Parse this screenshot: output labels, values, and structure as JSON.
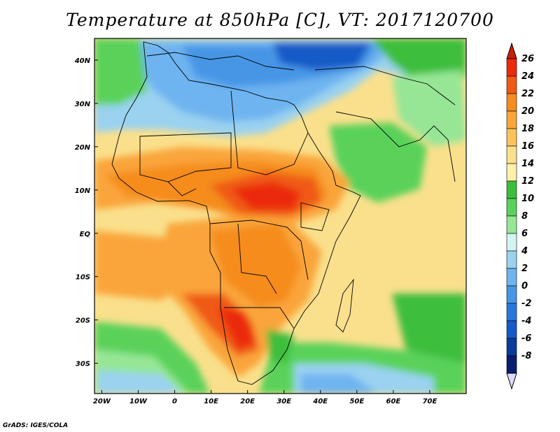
{
  "title": "Temperature at 850hPa [C], VT: 2017120700",
  "credit": "GrADS: IGES/COLA",
  "map": {
    "lon_range": [
      -22,
      80
    ],
    "lat_range": [
      -37,
      45
    ],
    "lon_ticks": [
      {
        "value": -20,
        "label": "20W"
      },
      {
        "value": -10,
        "label": "10W"
      },
      {
        "value": 0,
        "label": "0"
      },
      {
        "value": 10,
        "label": "10E"
      },
      {
        "value": 20,
        "label": "20E"
      },
      {
        "value": 30,
        "label": "30E"
      },
      {
        "value": 40,
        "label": "40E"
      },
      {
        "value": 50,
        "label": "50E"
      },
      {
        "value": 60,
        "label": "60E"
      },
      {
        "value": 70,
        "label": "70E"
      }
    ],
    "lat_ticks": [
      {
        "value": 40,
        "label": "40N"
      },
      {
        "value": 30,
        "label": "30N"
      },
      {
        "value": 20,
        "label": "20N"
      },
      {
        "value": 10,
        "label": "10N"
      },
      {
        "value": 0,
        "label": "EQ"
      },
      {
        "value": -10,
        "label": "10S"
      },
      {
        "value": -20,
        "label": "20S"
      },
      {
        "value": -30,
        "label": "30S"
      }
    ]
  },
  "colorbar": {
    "labels": [
      "26",
      "24",
      "22",
      "20",
      "18",
      "16",
      "14",
      "12",
      "10",
      "8",
      "6",
      "4",
      "2",
      "0",
      "-2",
      "-4",
      "-6",
      "-8"
    ],
    "colors": [
      "#eb2a0a",
      "#f05a14",
      "#f58c1e",
      "#faa53a",
      "#fac35a",
      "#fae08c",
      "#fff0aa",
      "#3cbe3c",
      "#5ad25a",
      "#96e696",
      "#d2f5f0",
      "#9ad2f0",
      "#6eb4f0",
      "#4696e6",
      "#2878dc",
      "#145ac8",
      "#0a3c9b",
      "#0a1e6e"
    ],
    "top_arrow_color": "#c81e0a",
    "bottom_arrow_color": "#dcdcfa"
  }
}
